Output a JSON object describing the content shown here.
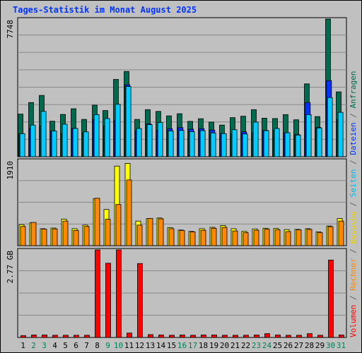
{
  "chart_data": {
    "type": "bar",
    "title": "Tages-Statistik im Monat August 2025",
    "categories": [
      "1",
      "2",
      "3",
      "4",
      "5",
      "6",
      "7",
      "8",
      "9",
      "10",
      "11",
      "12",
      "13",
      "14",
      "15",
      "16",
      "17",
      "18",
      "19",
      "20",
      "21",
      "22",
      "23",
      "24",
      "25",
      "26",
      "27",
      "28",
      "29",
      "30",
      "31"
    ],
    "weekend_days": [
      "2",
      "3",
      "9",
      "10",
      "16",
      "17",
      "23",
      "24",
      "30",
      "31"
    ],
    "panels": [
      {
        "ymax_label": "7748",
        "ymax": 7748,
        "series": [
          {
            "name": "Anfragen",
            "color": "#006a4e",
            "values": [
              2400,
              3050,
              3450,
              2000,
              2380,
              2700,
              2100,
              2900,
              2600,
              4350,
              4800,
              2100,
              2650,
              2550,
              2300,
              2420,
              1990,
              2140,
              1950,
              1780,
              2200,
              2280,
              2650,
              2170,
              2150,
              2370,
              2080,
              4100,
              2260,
              7748,
              3650
            ]
          },
          {
            "name": "Dateien",
            "color": "#0033ff",
            "values": [
              1300,
              1600,
              1740,
              1450,
              1320,
              1590,
              1350,
              2100,
              1720,
              2060,
              4050,
              1470,
              1850,
              1500,
              1580,
              1640,
              1550,
              1580,
              1500,
              1300,
              1300,
              1400,
              1350,
              1480,
              1500,
              1350,
              1250,
              3050,
              1650,
              4280,
              2080
            ]
          },
          {
            "name": "Seiten",
            "color": "#00ccff",
            "values": [
              1300,
              1780,
              2550,
              1450,
              1830,
              1590,
              1400,
              2370,
              2150,
              2950,
              3950,
              1590,
              1810,
              1920,
              1450,
              1480,
              1410,
              1470,
              1340,
              1300,
              1520,
              1280,
              1950,
              1470,
              1590,
              1350,
              1220,
              2370,
              1620,
              3330,
              2500
            ]
          }
        ]
      },
      {
        "ymax_label": "1910",
        "ymax": 1910,
        "series": [
          {
            "name": "Besuche",
            "color": "#ffff00",
            "values": [
              470,
              510,
              380,
              395,
              595,
              380,
              460,
              1050,
              810,
              1780,
              1840,
              550,
              605,
              620,
              405,
              350,
              320,
              380,
              410,
              450,
              380,
              320,
              375,
              390,
              385,
              360,
              365,
              380,
              310,
              440,
              610
            ]
          },
          {
            "name": "Rechner",
            "color": "#ff8800",
            "values": [
              430,
              520,
              370,
              375,
              550,
              340,
              430,
              1060,
              590,
              920,
              1470,
              460,
              610,
              600,
              380,
              340,
              310,
              345,
              390,
              410,
              330,
              290,
              345,
              370,
              355,
              315,
              355,
              365,
              295,
              425,
              550
            ]
          }
        ]
      },
      {
        "ymax_label": "2.77 GB",
        "ymax": 2.77,
        "series": [
          {
            "name": "Volumen",
            "color": "#ff0000",
            "values": [
              0.06,
              0.08,
              0.08,
              0.07,
              0.07,
              0.07,
              0.07,
              2.77,
              2.35,
              2.77,
              0.14,
              2.34,
              0.09,
              0.08,
              0.07,
              0.08,
              0.07,
              0.08,
              0.08,
              0.07,
              0.07,
              0.07,
              0.08,
              0.12,
              0.08,
              0.07,
              0.07,
              0.12,
              0.07,
              2.45,
              0.08
            ]
          }
        ]
      }
    ],
    "right_label_parts": [
      {
        "text": "Volumen",
        "color": "#ff0000"
      },
      {
        "text": " / ",
        "color": "#606060"
      },
      {
        "text": "Rechner",
        "color": "#ff8800"
      },
      {
        "text": " / ",
        "color": "#606060"
      },
      {
        "text": "Besuche",
        "color": "#e8d000"
      },
      {
        "text": " / ",
        "color": "#606060"
      },
      {
        "text": "Seiten",
        "color": "#00b8e8"
      },
      {
        "text": " / ",
        "color": "#606060"
      },
      {
        "text": "Dateien",
        "color": "#0033ff"
      },
      {
        "text": " / ",
        "color": "#606060"
      },
      {
        "text": "Anfragen",
        "color": "#006a4e"
      }
    ],
    "colors": {
      "background": "#c0c0c0",
      "title": "#0033ff",
      "weekday_label": "#000000",
      "weekend_label": "#00805a",
      "grid": "#888888"
    }
  }
}
